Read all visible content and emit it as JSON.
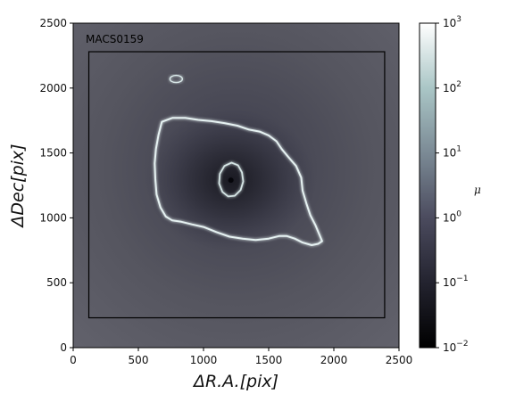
{
  "chart_data": {
    "type": "heatmap",
    "title": "",
    "panel_label": "MACS0159",
    "xlabel": "ΔR.A.[pix]",
    "ylabel": "ΔDec[pix]",
    "xlim": [
      0,
      2500
    ],
    "ylim": [
      0,
      2500
    ],
    "xticks": [
      0,
      500,
      1000,
      1500,
      2000,
      2500
    ],
    "yticks": [
      0,
      500,
      1000,
      1500,
      2000,
      2500
    ],
    "colormap": "bone",
    "colorbar": {
      "label": "μ",
      "scale": "log",
      "range": [
        0.01,
        1000
      ],
      "ticks": [
        {
          "value": 0.01,
          "base": "10",
          "exp": "−2"
        },
        {
          "value": 0.1,
          "base": "10",
          "exp": "−1"
        },
        {
          "value": 1,
          "base": "10",
          "exp": "0"
        },
        {
          "value": 10,
          "base": "10",
          "exp": "1"
        },
        {
          "value": 100,
          "base": "10",
          "exp": "2"
        },
        {
          "value": 1000,
          "base": "10",
          "exp": "3"
        }
      ]
    },
    "field_box": {
      "x": [
        120,
        2390
      ],
      "y": [
        230,
        2280
      ]
    },
    "lens_center": {
      "x": 1210,
      "y": 1290
    },
    "outer_critical_curve": [
      [
        680,
        1740
      ],
      [
        760,
        1770
      ],
      [
        860,
        1770
      ],
      [
        960,
        1755
      ],
      [
        1060,
        1745
      ],
      [
        1160,
        1730
      ],
      [
        1260,
        1710
      ],
      [
        1350,
        1680
      ],
      [
        1430,
        1665
      ],
      [
        1500,
        1635
      ],
      [
        1560,
        1590
      ],
      [
        1600,
        1530
      ],
      [
        1650,
        1470
      ],
      [
        1710,
        1400
      ],
      [
        1750,
        1310
      ],
      [
        1760,
        1210
      ],
      [
        1790,
        1110
      ],
      [
        1820,
        1020
      ],
      [
        1860,
        940
      ],
      [
        1910,
        820
      ],
      [
        1880,
        800
      ],
      [
        1830,
        790
      ],
      [
        1760,
        810
      ],
      [
        1700,
        840
      ],
      [
        1640,
        860
      ],
      [
        1580,
        860
      ],
      [
        1500,
        840
      ],
      [
        1400,
        830
      ],
      [
        1300,
        840
      ],
      [
        1200,
        855
      ],
      [
        1100,
        890
      ],
      [
        1000,
        930
      ],
      [
        910,
        950
      ],
      [
        830,
        970
      ],
      [
        760,
        980
      ],
      [
        710,
        1010
      ],
      [
        670,
        1080
      ],
      [
        640,
        1180
      ],
      [
        630,
        1300
      ],
      [
        625,
        1420
      ],
      [
        635,
        1530
      ],
      [
        655,
        1640
      ]
    ],
    "inner_critical_curve": [
      [
        1215,
        1425
      ],
      [
        1265,
        1405
      ],
      [
        1295,
        1350
      ],
      [
        1305,
        1280
      ],
      [
        1285,
        1215
      ],
      [
        1240,
        1170
      ],
      [
        1190,
        1165
      ],
      [
        1145,
        1200
      ],
      [
        1120,
        1265
      ],
      [
        1125,
        1340
      ],
      [
        1160,
        1400
      ]
    ],
    "secondary_feature": {
      "x": 790,
      "y": 2070
    }
  }
}
